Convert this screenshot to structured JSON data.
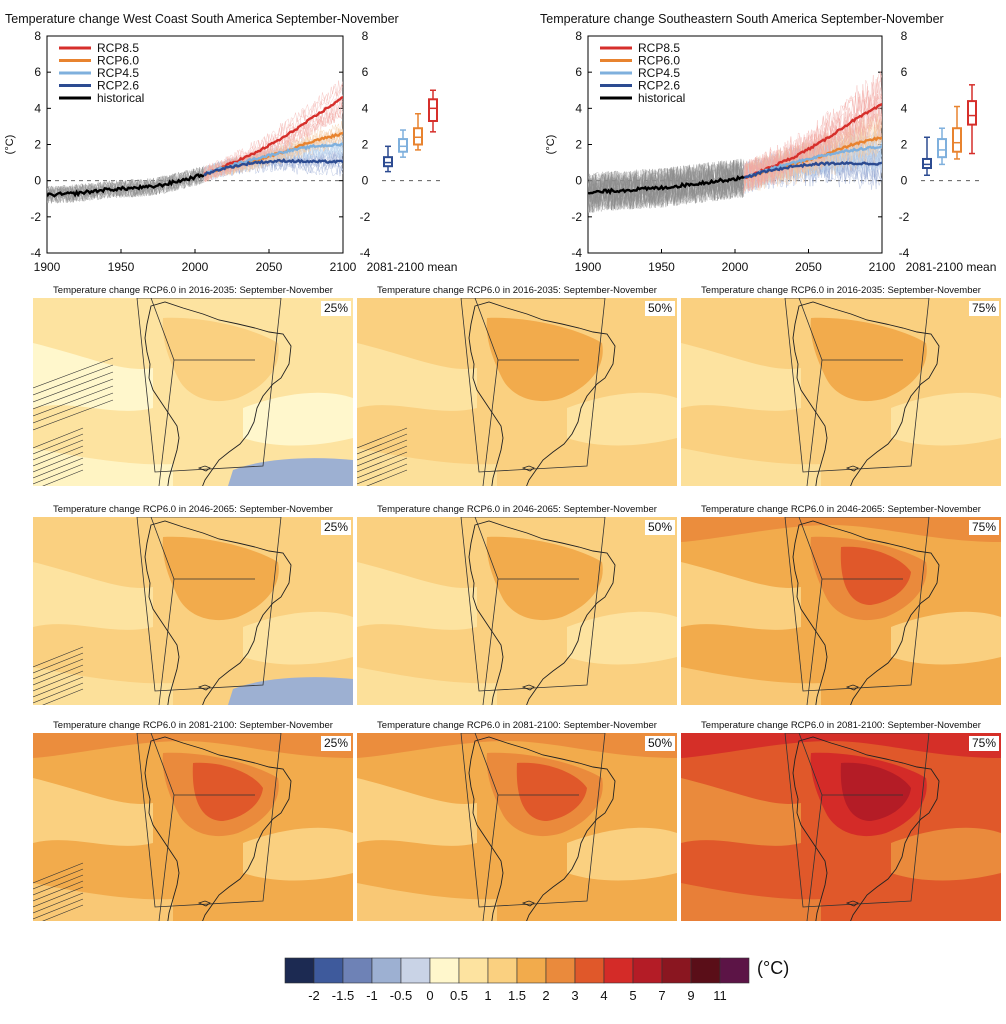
{
  "chart_data": [
    {
      "type": "line",
      "title": "Temperature change West Coast South America September-November",
      "ylabel": "(°C)",
      "xlim": [
        1900,
        2100
      ],
      "ylim": [
        -4,
        8
      ],
      "x_ticks": [
        "1900",
        "1950",
        "2000",
        "2050",
        "2100"
      ],
      "y_ticks": [
        "-4",
        "-2",
        "0",
        "2",
        "4",
        "6",
        "8"
      ],
      "legend_position": "top-left",
      "series": [
        {
          "name": "RCP8.5",
          "color": "#d62f2b",
          "x": [
            2006,
            2020,
            2040,
            2060,
            2080,
            2100
          ],
          "values": [
            0.35,
            0.8,
            1.5,
            2.4,
            3.5,
            4.6
          ]
        },
        {
          "name": "RCP6.0",
          "color": "#e8832f",
          "x": [
            2006,
            2020,
            2040,
            2060,
            2080,
            2100
          ],
          "values": [
            0.35,
            0.7,
            1.1,
            1.6,
            2.2,
            2.6
          ]
        },
        {
          "name": "RCP4.5",
          "color": "#7fb0dd",
          "x": [
            2006,
            2020,
            2040,
            2060,
            2080,
            2100
          ],
          "values": [
            0.35,
            0.75,
            1.2,
            1.6,
            1.9,
            2.0
          ]
        },
        {
          "name": "RCP2.6",
          "color": "#2c4b91",
          "x": [
            2006,
            2020,
            2040,
            2060,
            2080,
            2100
          ],
          "values": [
            0.35,
            0.7,
            1.0,
            1.1,
            1.05,
            1.05
          ]
        },
        {
          "name": "historical",
          "color": "#000000",
          "x": [
            1900,
            1910,
            1920,
            1930,
            1940,
            1950,
            1960,
            1970,
            1980,
            1990,
            2000,
            2006
          ],
          "values": [
            -0.8,
            -0.75,
            -0.7,
            -0.6,
            -0.5,
            -0.45,
            -0.4,
            -0.35,
            -0.2,
            0.0,
            0.2,
            0.35
          ]
        }
      ],
      "box_label": "2081-2100 mean",
      "boxes": [
        {
          "name": "RCP2.6",
          "color": "#2c4b91",
          "min": 0.5,
          "q1": 0.8,
          "median": 1.0,
          "q3": 1.3,
          "max": 1.9
        },
        {
          "name": "RCP4.5",
          "color": "#7fb0dd",
          "min": 1.3,
          "q1": 1.6,
          "median": 1.9,
          "q3": 2.3,
          "max": 2.8
        },
        {
          "name": "RCP6.0",
          "color": "#e8832f",
          "min": 1.7,
          "q1": 2.0,
          "median": 2.4,
          "q3": 2.9,
          "max": 3.7
        },
        {
          "name": "RCP8.5",
          "color": "#d62f2b",
          "min": 2.7,
          "q1": 3.3,
          "median": 4.0,
          "q3": 4.5,
          "max": 5.0
        }
      ]
    },
    {
      "type": "line",
      "title": "Temperature change Southeastern South America September-November",
      "ylabel": "(°C)",
      "xlim": [
        1900,
        2100
      ],
      "ylim": [
        -4,
        8
      ],
      "x_ticks": [
        "1900",
        "1950",
        "2000",
        "2050",
        "2100"
      ],
      "y_ticks": [
        "-4",
        "-2",
        "0",
        "2",
        "4",
        "6",
        "8"
      ],
      "legend_position": "top-left",
      "series": [
        {
          "name": "RCP8.5",
          "color": "#d62f2b",
          "x": [
            2006,
            2020,
            2040,
            2060,
            2080,
            2100
          ],
          "values": [
            0.15,
            0.6,
            1.3,
            2.2,
            3.3,
            4.2
          ]
        },
        {
          "name": "RCP6.0",
          "color": "#e8832f",
          "x": [
            2006,
            2020,
            2040,
            2060,
            2080,
            2100
          ],
          "values": [
            0.15,
            0.5,
            0.9,
            1.4,
            2.0,
            2.4
          ]
        },
        {
          "name": "RCP4.5",
          "color": "#7fb0dd",
          "x": [
            2006,
            2020,
            2040,
            2060,
            2080,
            2100
          ],
          "values": [
            0.15,
            0.55,
            1.0,
            1.4,
            1.7,
            1.9
          ]
        },
        {
          "name": "RCP2.6",
          "color": "#2c4b91",
          "x": [
            2006,
            2020,
            2040,
            2060,
            2080,
            2100
          ],
          "values": [
            0.15,
            0.5,
            0.8,
            0.95,
            0.95,
            0.95
          ]
        },
        {
          "name": "historical",
          "color": "#000000",
          "x": [
            1900,
            1910,
            1920,
            1930,
            1940,
            1950,
            1960,
            1970,
            1980,
            1990,
            2000,
            2006
          ],
          "values": [
            -0.7,
            -0.6,
            -0.55,
            -0.5,
            -0.45,
            -0.4,
            -0.3,
            -0.2,
            -0.1,
            0.0,
            0.1,
            0.15
          ]
        }
      ],
      "box_label": "2081-2100 mean",
      "boxes": [
        {
          "name": "RCP2.6",
          "color": "#2c4b91",
          "min": 0.3,
          "q1": 0.7,
          "median": 0.9,
          "q3": 1.2,
          "max": 2.4
        },
        {
          "name": "RCP4.5",
          "color": "#7fb0dd",
          "min": 0.9,
          "q1": 1.3,
          "median": 1.7,
          "q3": 2.3,
          "max": 2.9
        },
        {
          "name": "RCP6.0",
          "color": "#e8832f",
          "min": 1.2,
          "q1": 1.6,
          "median": 2.1,
          "q3": 2.9,
          "max": 4.1
        },
        {
          "name": "RCP8.5",
          "color": "#d62f2b",
          "min": 1.5,
          "q1": 3.1,
          "median": 3.6,
          "q3": 4.4,
          "max": 5.3
        }
      ]
    },
    {
      "type": "heatmap",
      "panels": [
        {
          "title": "Temperature change RCP6.0 in 2016-2035: September-November",
          "percentile": "25%",
          "level_index": 6,
          "hatching": true,
          "negative_patch": true
        },
        {
          "title": "Temperature change RCP6.0 in 2016-2035: September-November",
          "percentile": "50%",
          "level_index": 7,
          "hatching": true,
          "negative_patch": false
        },
        {
          "title": "Temperature change RCP6.0 in 2016-2035: September-November",
          "percentile": "75%",
          "level_index": 7,
          "hatching": false,
          "negative_patch": false
        },
        {
          "title": "Temperature change RCP6.0 in 2046-2065: September-November",
          "percentile": "25%",
          "level_index": 7,
          "hatching": true,
          "negative_patch": true
        },
        {
          "title": "Temperature change RCP6.0 in 2046-2065: September-November",
          "percentile": "50%",
          "level_index": 7,
          "hatching": false,
          "negative_patch": false
        },
        {
          "title": "Temperature change RCP6.0 in 2046-2065: September-November",
          "percentile": "75%",
          "level_index": 8,
          "hatching": false,
          "negative_patch": false
        },
        {
          "title": "Temperature change RCP6.0 in 2081-2100: September-November",
          "percentile": "25%",
          "level_index": 8,
          "hatching": true,
          "negative_patch": false
        },
        {
          "title": "Temperature change RCP6.0 in 2081-2100: September-November",
          "percentile": "50%",
          "level_index": 8,
          "hatching": false,
          "negative_patch": false
        },
        {
          "title": "Temperature change RCP6.0 in 2081-2100: September-November",
          "percentile": "75%",
          "level_index": 10,
          "hatching": false,
          "negative_patch": false
        }
      ],
      "colorbar": {
        "unit": "(°C)",
        "colors": [
          "#1c2a52",
          "#3e5a9c",
          "#6e82b6",
          "#9db0d2",
          "#c9d3e6",
          "#fff7cc",
          "#fde3a0",
          "#fad080",
          "#f2ab4c",
          "#ea8a3c",
          "#e0582a",
          "#d42b28",
          "#b41c26",
          "#8a1620",
          "#5a0e18",
          "#5c1446"
        ],
        "labels": [
          "-2",
          "-1.5",
          "-1",
          "-0.5",
          "0",
          "0.5",
          "1",
          "1.5",
          "2",
          "3",
          "4",
          "5",
          "7",
          "9",
          "11"
        ]
      }
    }
  ]
}
